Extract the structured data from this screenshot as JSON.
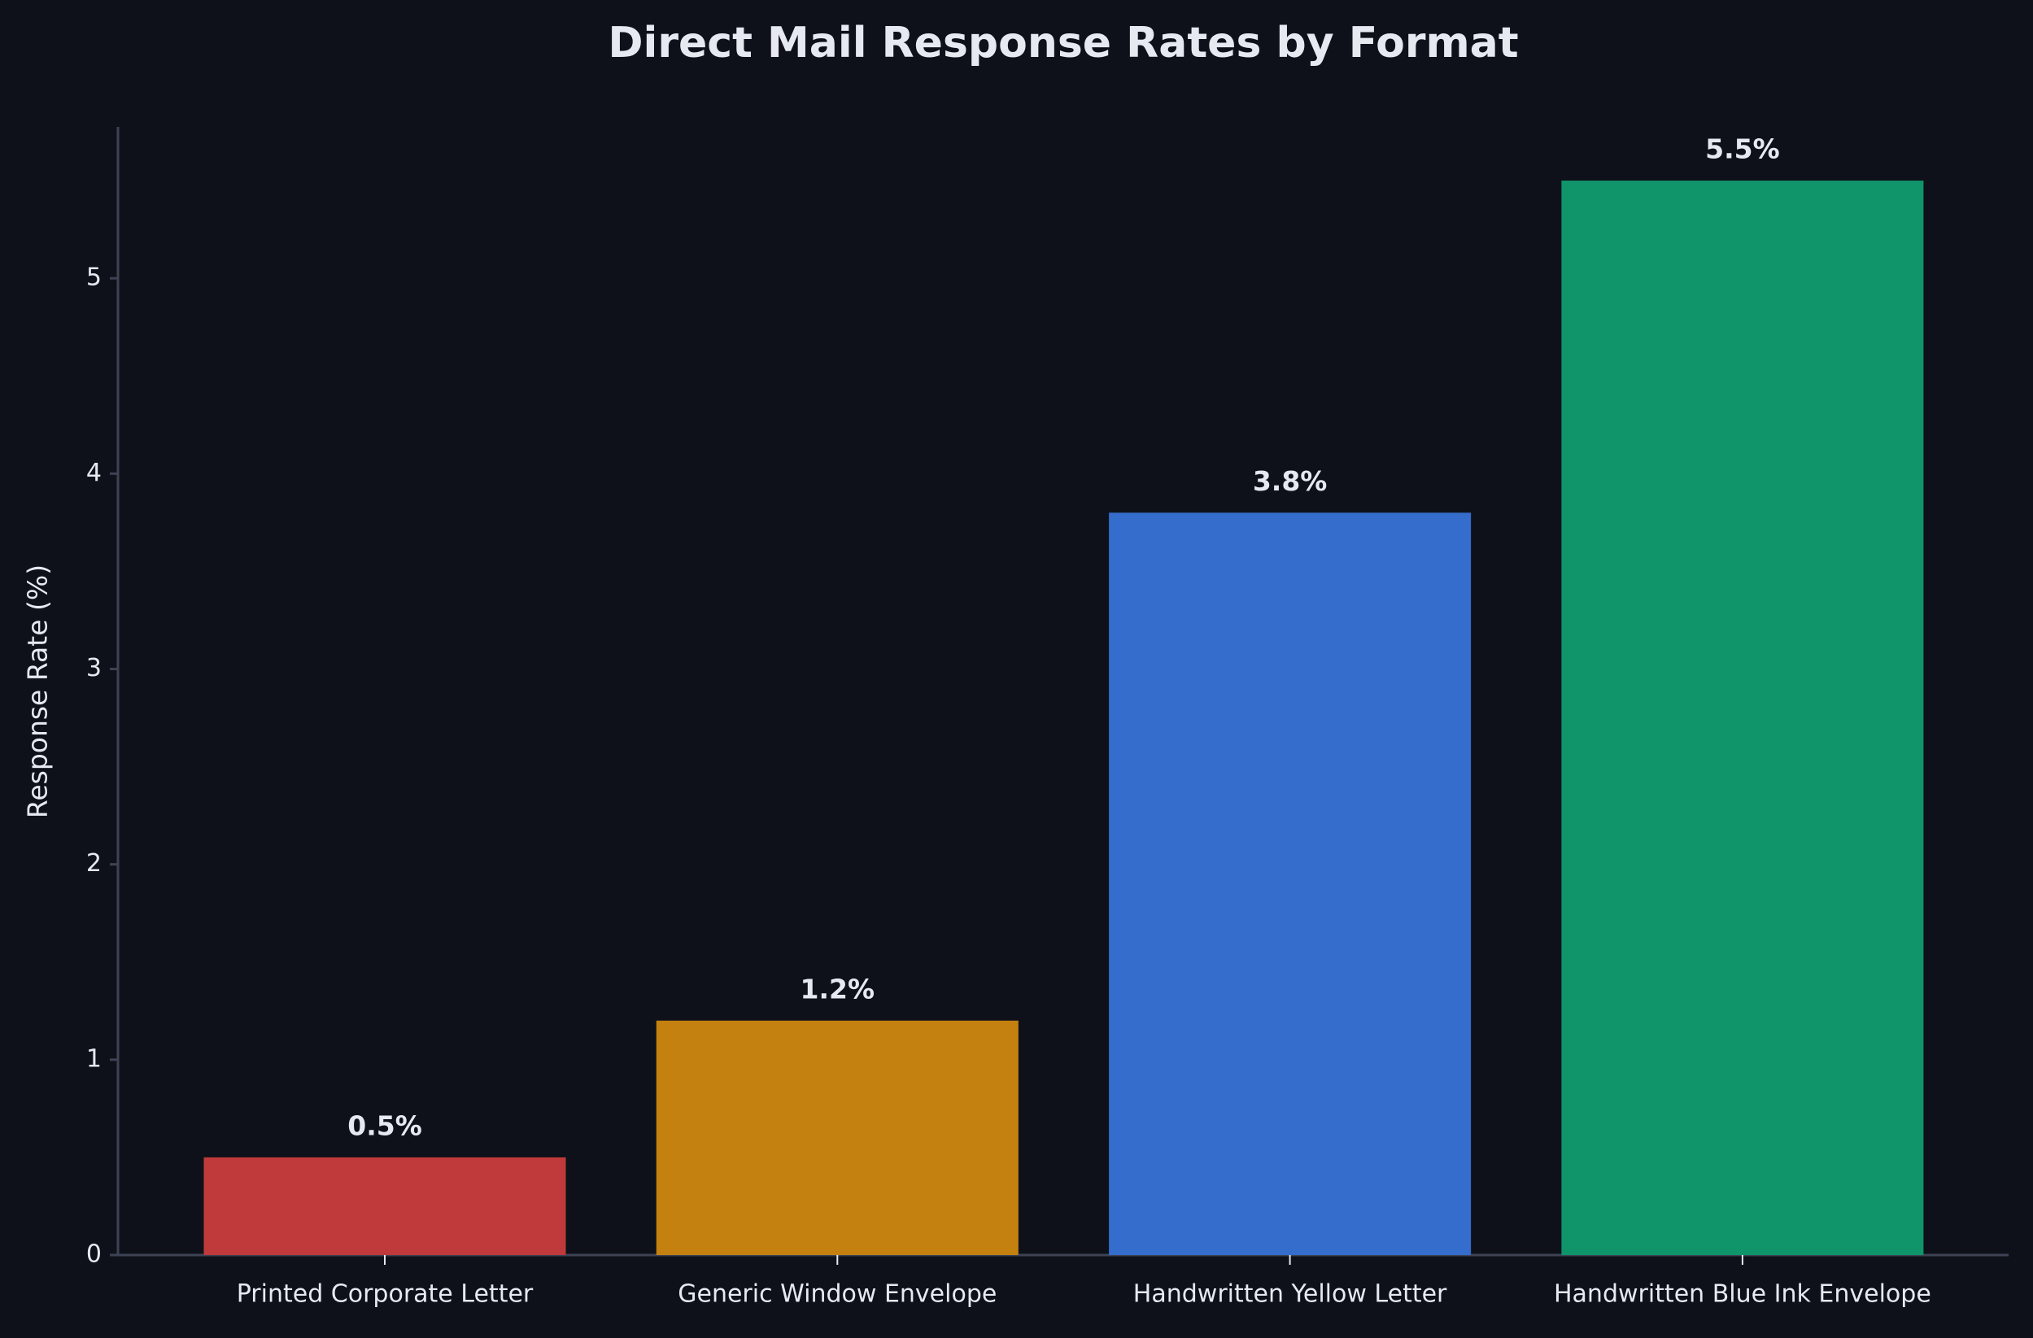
{
  "chart_data": {
    "type": "bar",
    "title": "Direct Mail Response Rates by Format",
    "y_label": "Response Rate (%)",
    "categories": [
      "Printed Corporate Letter",
      "Generic Window Envelope",
      "Handwritten Yellow Letter",
      "Handwritten Blue Ink Envelope"
    ],
    "values": [
      0.5,
      1.2,
      3.8,
      5.5
    ],
    "value_labels": [
      "0.5%",
      "1.2%",
      "3.8%",
      "5.5%"
    ],
    "colors": [
      "#c0393b",
      "#c58110",
      "#356dcc",
      "#10956b"
    ],
    "ylim": [
      0,
      5.775
    ],
    "yticks": [
      0,
      1,
      2,
      3,
      4,
      5
    ],
    "grid": false
  }
}
